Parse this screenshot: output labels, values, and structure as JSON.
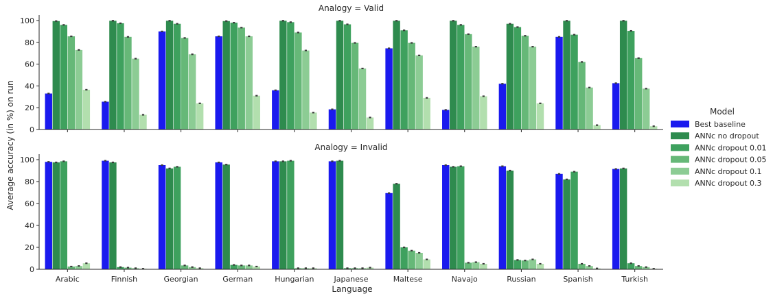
{
  "chart_data": {
    "type": "bar",
    "xlabel": "Language",
    "ylabel": "Average accuracy (in %) on run",
    "ylim": [
      0,
      105
    ],
    "yticks": [
      0,
      20,
      40,
      60,
      80,
      100
    ],
    "grid": false,
    "legend_placement": "right",
    "legend_title": "Model",
    "categories": [
      "Arabic",
      "Finnish",
      "Georgian",
      "German",
      "Hungarian",
      "Japanese",
      "Maltese",
      "Navajo",
      "Russian",
      "Spanish",
      "Turkish"
    ],
    "series": [
      {
        "name": "Best baseline",
        "color": "#1a1aee"
      },
      {
        "name": "ANNc no dropout",
        "color": "#2e8b4e"
      },
      {
        "name": "ANNc dropout 0.01",
        "color": "#3ea15e"
      },
      {
        "name": "ANNc dropout 0.05",
        "color": "#66b878"
      },
      {
        "name": "ANNc dropout 0.1",
        "color": "#8ccc94"
      },
      {
        "name": "ANNc dropout 0.3",
        "color": "#b2dfae"
      }
    ],
    "panels": [
      {
        "title": "Analogy = Valid",
        "values": [
          [
            33,
            99.5,
            96,
            85.5,
            73,
            36.5
          ],
          [
            25.5,
            99.8,
            97.5,
            85,
            65,
            13.5
          ],
          [
            90,
            99.8,
            97,
            84,
            69,
            24
          ],
          [
            85.5,
            99.5,
            98,
            93.5,
            85.5,
            31
          ],
          [
            36,
            99.8,
            98.5,
            89,
            72.5,
            15.5
          ],
          [
            18.5,
            99.8,
            96.5,
            79.5,
            56,
            11
          ],
          [
            74.5,
            99.8,
            91,
            79.5,
            68,
            29
          ],
          [
            18,
            99.8,
            96,
            87.5,
            76,
            30.5
          ],
          [
            42,
            97,
            94,
            86,
            76,
            24
          ],
          [
            85,
            99.8,
            87,
            62,
            38.5,
            4
          ],
          [
            42.5,
            99.8,
            90.5,
            65.5,
            37.5,
            3
          ]
        ]
      },
      {
        "title": "Analogy = Invalid",
        "values": [
          [
            98,
            97.5,
            98.5,
            2.5,
            3,
            5.5
          ],
          [
            99,
            97.5,
            2,
            1.5,
            1,
            0.5
          ],
          [
            95,
            92,
            93.5,
            3.5,
            2,
            1
          ],
          [
            97.5,
            95.5,
            4,
            3.5,
            3.5,
            2.5
          ],
          [
            98.5,
            98.5,
            99,
            1,
            1,
            1
          ],
          [
            98.5,
            99,
            1,
            1,
            1,
            1.5
          ],
          [
            69.5,
            78,
            20,
            17,
            15,
            9
          ],
          [
            95,
            93.5,
            94,
            6,
            6.5,
            5
          ],
          [
            94,
            90,
            8.5,
            8,
            9,
            5
          ],
          [
            87,
            82,
            89,
            5,
            3,
            0.8
          ],
          [
            91.5,
            92,
            5.5,
            3,
            2,
            0.5
          ]
        ]
      }
    ]
  }
}
